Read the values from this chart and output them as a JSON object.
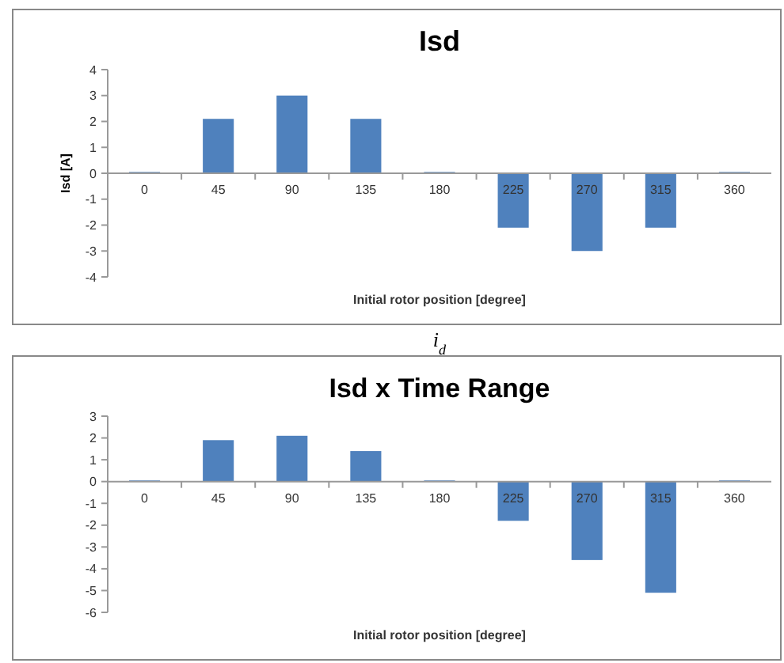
{
  "chart_data": [
    {
      "type": "bar",
      "title": "Isd",
      "xlabel": "Initial rotor position [degree]",
      "ylabel": "Isd [A]",
      "categories": [
        "0",
        "45",
        "90",
        "135",
        "180",
        "225",
        "270",
        "315",
        "360"
      ],
      "values": [
        0.05,
        2.1,
        3,
        2.1,
        0.05,
        -2.1,
        -3,
        -2.1,
        0.05
      ],
      "color": "#4f81bd",
      "ylim": [
        -4,
        4
      ],
      "yticks": [
        -4,
        -3,
        -2,
        -1,
        0,
        1,
        2,
        3,
        4
      ],
      "grid": false,
      "annotations": [
        "i$_{d}$"
      ]
    },
    {
      "type": "bar",
      "title": "Isd x Time Range",
      "xlabel": "Initial rotor position [degree]",
      "categories": [
        "0",
        "45",
        "90",
        "135",
        "180",
        "225",
        "270",
        "315",
        "360"
      ],
      "values": [
        0.05,
        1.9,
        2.1,
        1.4,
        0.05,
        -1.8,
        -3.6,
        -5.1,
        0.05
      ],
      "color": "#4f81bd",
      "ylim": [
        -6,
        3
      ],
      "yticks": [
        -6,
        -5,
        -4,
        -3,
        -2,
        -1,
        0,
        1,
        2,
        3
      ],
      "grid": false
    }
  ]
}
